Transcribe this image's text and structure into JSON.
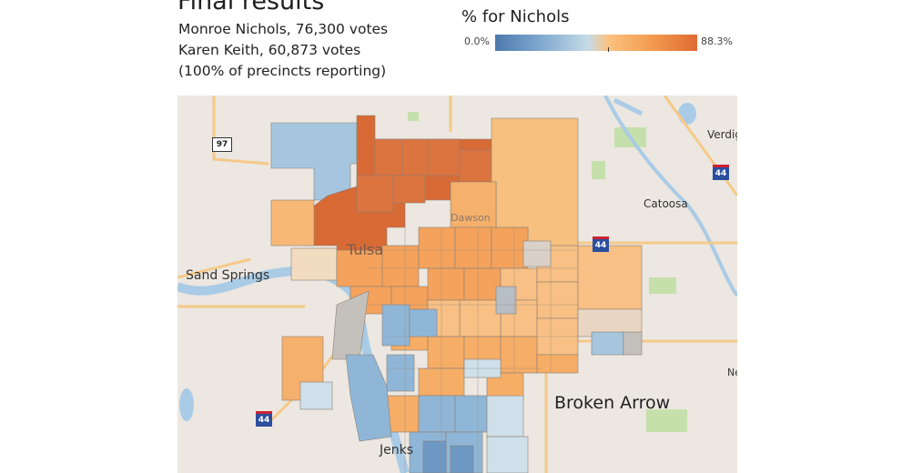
{
  "header": {
    "title": "Final results",
    "line1": "Monroe Nichols, 76,300 votes",
    "line2": "Karen Keith, 60,873 votes",
    "line3": "(100% of precincts reporting)"
  },
  "legend": {
    "title": "% for Nichols",
    "min_label": "0.0%",
    "max_label": "88.3%",
    "min_value": 0.0,
    "max_value": 88.3,
    "colors": [
      "#4d79ad",
      "#7ea7cf",
      "#c5dbe8",
      "#fbc27f",
      "#f39a4e",
      "#df6b33"
    ]
  },
  "map": {
    "places": {
      "sand_springs": "Sand Springs",
      "tulsa": "Tulsa",
      "dawson": "Dawson",
      "catoosa": "Catoosa",
      "broken_arrow": "Broken Arrow",
      "jenks": "Jenks",
      "verdigris": "Verdig",
      "ne": "Ne"
    },
    "routes": {
      "us97": "97",
      "i44_ne": "44",
      "i44_sw": "44",
      "i244": "44"
    },
    "background_color": "#ece7e1",
    "water_color": "#a9cbe6",
    "park_color": "#c6e0ac",
    "road_color": "#f6c987"
  }
}
